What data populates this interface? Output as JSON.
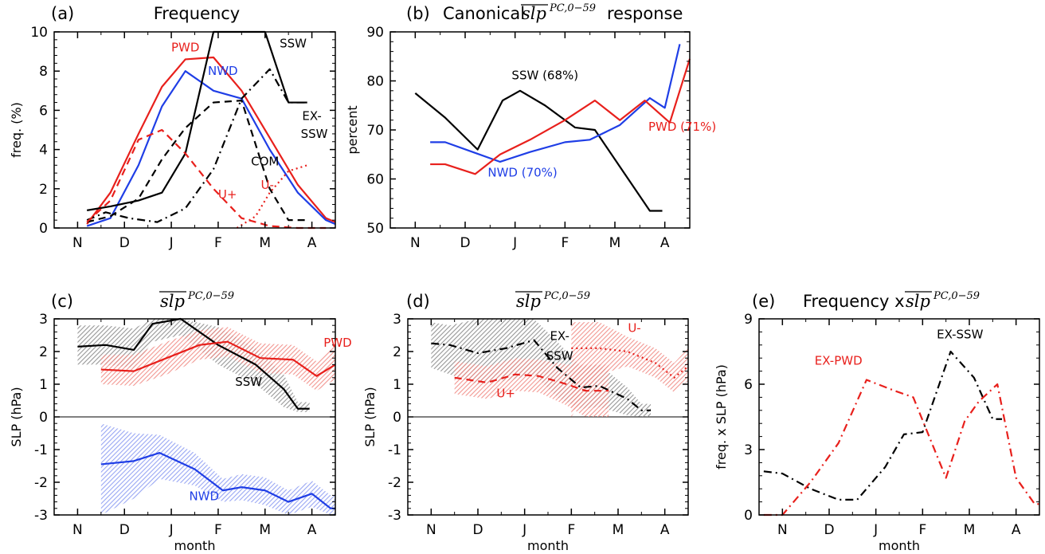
{
  "figure": {
    "months": [
      "N",
      "D",
      "J",
      "F",
      "M",
      "A"
    ],
    "xlabel": "month",
    "colors": {
      "black": "#000000",
      "red": "#e8201c",
      "blue": "#1f3ee6"
    }
  },
  "chart_data": [
    {
      "id": "a",
      "type": "line",
      "panel_label": "(a)",
      "title": "Frequency",
      "ylabel": "freq. (%)",
      "ylim": [
        0,
        10
      ],
      "yticks": [
        "0",
        "2",
        "4",
        "6",
        "8",
        "10"
      ],
      "x_categories": [
        "N",
        "D",
        "J",
        "F",
        "M",
        "A"
      ],
      "series": [
        {
          "name": "PWD",
          "color": "red",
          "dash": "solid",
          "x": [
            0.2,
            0.7,
            1.3,
            1.8,
            2.3,
            2.9,
            3.5,
            4.1,
            4.7,
            5.3,
            5.8
          ],
          "y": [
            0.2,
            1.8,
            4.8,
            7.2,
            8.6,
            8.7,
            7.0,
            4.6,
            2.2,
            0.5,
            0.3
          ]
        },
        {
          "name": "NWD",
          "color": "blue",
          "dash": "solid",
          "x": [
            0.2,
            0.7,
            1.3,
            1.8,
            2.3,
            2.9,
            3.5,
            4.1,
            4.7,
            5.3,
            5.8
          ],
          "y": [
            0.1,
            0.5,
            3.2,
            6.2,
            8.0,
            7.0,
            6.6,
            4.0,
            1.8,
            0.4,
            0.2
          ]
        },
        {
          "name": "SSW",
          "color": "black",
          "dash": "solid",
          "x": [
            0.2,
            0.7,
            1.3,
            1.8,
            2.3,
            2.9,
            4.0,
            4.5,
            4.9
          ],
          "y": [
            0.9,
            1.1,
            1.4,
            1.8,
            3.8,
            10.0,
            10.0,
            6.4,
            6.4
          ]
        },
        {
          "name": "EX-SSW",
          "color": "black",
          "dash": "dashdot",
          "x": [
            0.2,
            0.6,
            1.1,
            1.7,
            2.3,
            2.9,
            3.5,
            4.1,
            4.5,
            4.9
          ],
          "y": [
            0.4,
            0.8,
            0.5,
            0.3,
            1.0,
            3.0,
            6.6,
            8.1,
            6.4,
            6.4
          ]
        },
        {
          "name": "COM",
          "color": "black",
          "dash": "dashed",
          "x": [
            0.2,
            0.7,
            1.3,
            1.8,
            2.3,
            2.9,
            3.5,
            4.1,
            4.5,
            4.9
          ],
          "y": [
            0.3,
            0.6,
            1.5,
            3.5,
            5.1,
            6.4,
            6.5,
            2.0,
            0.4,
            0.4
          ]
        },
        {
          "name": "U+",
          "color": "red",
          "dash": "dashed",
          "x": [
            0.2,
            0.7,
            1.3,
            1.8,
            2.3,
            2.9,
            3.5,
            4.1,
            4.7,
            5.3
          ],
          "y": [
            0.3,
            1.4,
            4.5,
            5.0,
            3.8,
            2.0,
            0.5,
            0.1,
            0.0,
            0.0
          ]
        },
        {
          "name": "U-",
          "color": "red",
          "dash": "dotted",
          "x": [
            3.4,
            3.8,
            4.1,
            4.5,
            4.9
          ],
          "y": [
            0.0,
            0.6,
            1.8,
            2.9,
            3.2
          ]
        }
      ],
      "labels": [
        {
          "text": "PWD",
          "color": "red",
          "x": 2.3,
          "y": 9.0
        },
        {
          "text": "NWD",
          "color": "blue",
          "x": 3.1,
          "y": 7.8
        },
        {
          "text": "SSW",
          "color": "black",
          "x": 4.6,
          "y": 9.2
        },
        {
          "text": "EX-",
          "color": "black",
          "x": 5.0,
          "y": 5.5
        },
        {
          "text": "SSW",
          "color": "black",
          "x": 5.05,
          "y": 4.6
        },
        {
          "text": "COM",
          "color": "black",
          "x": 4.0,
          "y": 3.2
        },
        {
          "text": "U+",
          "color": "red",
          "x": 3.2,
          "y": 1.5
        },
        {
          "text": "U-",
          "color": "red",
          "x": 4.05,
          "y": 2.0
        }
      ]
    },
    {
      "id": "b",
      "type": "line",
      "panel_label": "(b)",
      "title_pre": "Canonical",
      "title_base": "slp",
      "title_sup": "PC,0−59",
      "title_post": "response",
      "ylabel": "percent",
      "ylim": [
        50,
        90
      ],
      "yticks": [
        "50",
        "60",
        "70",
        "80",
        "90"
      ],
      "x_categories": [
        "N",
        "D",
        "J",
        "F",
        "M",
        "A"
      ],
      "series": [
        {
          "name": "SSW (68%)",
          "color": "black",
          "dash": "solid",
          "x": [
            0.0,
            0.6,
            1.25,
            1.75,
            2.1,
            2.6,
            3.2,
            3.6,
            4.2,
            4.7,
            4.95
          ],
          "y": [
            77.5,
            72.5,
            66.0,
            76.0,
            78.0,
            75.0,
            70.5,
            70.0,
            61.0,
            53.5,
            53.5
          ]
        },
        {
          "name": "NWD (70%)",
          "color": "blue",
          "dash": "solid",
          "x": [
            0.3,
            0.6,
            1.15,
            1.7,
            2.3,
            3.0,
            3.5,
            4.1,
            4.7,
            5.0,
            5.3
          ],
          "y": [
            67.5,
            67.5,
            65.5,
            63.5,
            65.5,
            67.5,
            68.0,
            71.0,
            76.5,
            74.5,
            87.5
          ]
        },
        {
          "name": "PWD (71%)",
          "color": "red",
          "dash": "solid",
          "x": [
            0.3,
            0.6,
            1.2,
            1.7,
            2.3,
            3.0,
            3.6,
            4.1,
            4.6,
            5.1,
            5.7
          ],
          "y": [
            63.0,
            63.0,
            61.0,
            65.0,
            68.0,
            72.0,
            76.0,
            72.0,
            76.0,
            71.5,
            84.5
          ]
        }
      ],
      "labels": [
        {
          "text": "SSW (68%)",
          "color": "black",
          "x": 2.6,
          "y": 80.3
        },
        {
          "text": "PWD (71%)",
          "color": "red",
          "x": 5.35,
          "y": 69.8
        },
        {
          "text": "NWD (70%)",
          "color": "blue",
          "x": 2.15,
          "y": 60.5
        }
      ]
    },
    {
      "id": "c",
      "type": "line_with_band",
      "panel_label": "(c)",
      "title_base": "slp",
      "title_sup": "PC,0−59",
      "ylabel": "SLP (hPa)",
      "xlabel": "month",
      "ylim": [
        -3,
        3
      ],
      "yticks": [
        "-3",
        "-2",
        "-1",
        "0",
        "1",
        "2",
        "3"
      ],
      "x_categories": [
        "N",
        "D",
        "J",
        "F",
        "M",
        "A"
      ],
      "series": [
        {
          "name": "SSW",
          "color": "black",
          "x": [
            0.0,
            0.6,
            1.2,
            1.6,
            2.2,
            3.0,
            3.8,
            4.4,
            4.7,
            4.95
          ],
          "y": [
            2.15,
            2.2,
            2.05,
            2.85,
            3.05,
            2.2,
            1.6,
            0.85,
            0.25,
            0.25
          ],
          "lo": [
            1.6,
            1.6,
            1.5,
            2.3,
            2.5,
            1.6,
            1.0,
            0.3,
            0.15,
            0.15
          ],
          "hi": [
            2.8,
            2.8,
            2.7,
            3.0,
            3.0,
            2.75,
            2.1,
            1.3,
            0.45,
            0.45
          ]
        },
        {
          "name": "PWD",
          "color": "red",
          "x": [
            0.5,
            1.2,
            1.9,
            2.6,
            3.2,
            3.9,
            4.6,
            5.1,
            5.5,
            5.8
          ],
          "y": [
            1.45,
            1.4,
            1.8,
            2.2,
            2.3,
            1.8,
            1.75,
            1.25,
            1.6,
            1.6
          ],
          "lo": [
            1.0,
            0.95,
            1.3,
            1.75,
            1.85,
            1.35,
            1.3,
            0.8,
            1.15,
            1.15
          ],
          "hi": [
            1.9,
            1.9,
            2.3,
            2.65,
            2.75,
            2.25,
            2.2,
            1.7,
            2.2,
            2.2
          ]
        },
        {
          "name": "NWD",
          "color": "blue",
          "x": [
            0.5,
            1.2,
            1.75,
            2.5,
            3.1,
            3.5,
            4.0,
            4.5,
            5.0,
            5.4,
            5.7
          ],
          "y": [
            -1.45,
            -1.35,
            -1.1,
            -1.6,
            -2.25,
            -2.15,
            -2.25,
            -2.6,
            -2.35,
            -2.8,
            -2.8
          ],
          "lo": [
            -3.0,
            -2.5,
            -1.9,
            -2.1,
            -2.6,
            -2.55,
            -2.7,
            -3.0,
            -2.75,
            -3.0,
            -3.0
          ],
          "hi": [
            -0.2,
            -0.5,
            -0.55,
            -1.1,
            -1.9,
            -1.75,
            -1.85,
            -2.25,
            -1.95,
            -2.4,
            -2.4
          ]
        }
      ],
      "labels": [
        {
          "text": "PWD",
          "color": "red",
          "x": 5.55,
          "y": 2.15
        },
        {
          "text": "SSW",
          "color": "black",
          "x": 3.65,
          "y": 0.95
        },
        {
          "text": "NWD",
          "color": "blue",
          "x": 2.7,
          "y": -2.55
        }
      ]
    },
    {
      "id": "d",
      "type": "line_with_band",
      "panel_label": "(d)",
      "title_base": "slp",
      "title_sup": "PC,0−59",
      "ylabel": "SLP (hPa)",
      "xlabel": "month",
      "ylim": [
        -3,
        3
      ],
      "yticks": [
        "-3",
        "-2",
        "-1",
        "0",
        "1",
        "2",
        "3"
      ],
      "x_categories": [
        "N",
        "D",
        "J",
        "F",
        "M",
        "A"
      ],
      "series": [
        {
          "name": "EX-SSW",
          "color": "black",
          "dash": "dashdot",
          "x": [
            0.0,
            0.4,
            1.0,
            1.6,
            2.2,
            2.7,
            3.2,
            3.6,
            4.2,
            4.5,
            4.7
          ],
          "y": [
            2.25,
            2.2,
            1.95,
            2.1,
            2.35,
            1.5,
            0.9,
            0.95,
            0.55,
            0.2,
            0.2
          ],
          "lo": [
            1.5,
            1.3,
            1.0,
            1.1,
            1.3,
            0.6,
            0.25,
            0.3,
            0.05,
            0.0,
            0.0
          ],
          "hi": [
            2.9,
            2.8,
            3.0,
            3.0,
            3.0,
            2.3,
            1.55,
            1.6,
            0.9,
            0.4,
            0.4
          ]
        },
        {
          "name": "U+",
          "color": "red",
          "dash": "dashed",
          "x": [
            0.5,
            1.2,
            1.8,
            2.3,
            2.9,
            3.3,
            3.8
          ],
          "y": [
            1.2,
            1.05,
            1.3,
            1.25,
            1.0,
            0.8,
            0.8
          ],
          "lo": [
            0.7,
            0.55,
            0.8,
            0.75,
            0.35,
            0.0,
            0.0
          ],
          "hi": [
            1.7,
            1.55,
            1.8,
            1.75,
            1.6,
            1.6,
            1.6
          ]
        },
        {
          "name": "U-",
          "color": "red",
          "dash": "dotted",
          "x": [
            3.0,
            3.6,
            4.2,
            4.8,
            5.2,
            5.8
          ],
          "y": [
            2.1,
            2.1,
            2.0,
            1.65,
            1.2,
            1.55
          ],
          "lo": [
            0.0,
            1.3,
            1.55,
            1.2,
            0.75,
            1.1
          ],
          "hi": [
            2.9,
            2.9,
            2.45,
            2.1,
            1.65,
            2.1
          ]
        }
      ],
      "labels": [
        {
          "text": "EX-",
          "color": "black",
          "x": 2.75,
          "y": 2.35
        },
        {
          "text": "SSW",
          "color": "black",
          "x": 2.75,
          "y": 1.75
        },
        {
          "text": "U-",
          "color": "red",
          "x": 4.35,
          "y": 2.6
        },
        {
          "text": "U+",
          "color": "red",
          "x": 1.6,
          "y": 0.6
        }
      ]
    },
    {
      "id": "e",
      "type": "line",
      "panel_label": "(e)",
      "title_pre": "Frequency x",
      "title_base": "slp",
      "title_sup": "PC,0−59",
      "ylabel": "freq. x SLP (hPa)",
      "xlabel": "month",
      "ylim": [
        0,
        9
      ],
      "yticks": [
        "0",
        "3",
        "6",
        "9"
      ],
      "x_categories": [
        "N",
        "D",
        "J",
        "F",
        "M",
        "A"
      ],
      "series": [
        {
          "name": "EX-SSW",
          "color": "black",
          "dash": "dashdot",
          "x": [
            -0.4,
            0.0,
            0.6,
            1.2,
            1.6,
            2.2,
            2.6,
            3.0,
            3.6,
            4.1,
            4.5,
            4.7
          ],
          "y": [
            2.0,
            1.9,
            1.2,
            0.7,
            0.7,
            2.2,
            3.7,
            3.8,
            7.5,
            6.3,
            4.4,
            4.4
          ]
        },
        {
          "name": "EX-PWD",
          "color": "red",
          "dash": "dashdot",
          "x": [
            -0.4,
            0.0,
            0.6,
            1.2,
            1.8,
            2.4,
            2.8,
            3.5,
            3.9,
            4.2,
            4.6,
            5.0,
            5.4,
            5.8
          ],
          "y": [
            0.0,
            0.0,
            1.5,
            3.3,
            6.2,
            5.7,
            5.4,
            1.7,
            4.3,
            5.2,
            6.0,
            1.7,
            0.5,
            0.5
          ]
        }
      ],
      "labels": [
        {
          "text": "EX-SSW",
          "color": "black",
          "x": 3.8,
          "y": 8.1
        },
        {
          "text": "EX-PWD",
          "color": "red",
          "x": 1.2,
          "y": 6.9
        }
      ]
    }
  ]
}
